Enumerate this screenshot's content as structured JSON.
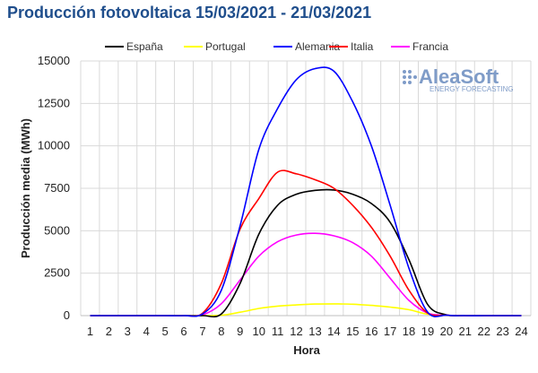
{
  "chart_data": {
    "type": "line",
    "title": "Producción fotovoltaica 15/03/2021 - 21/03/2021",
    "xlabel": "Hora",
    "ylabel": "Producción media (MWh)",
    "ylim": [
      0,
      15000
    ],
    "yticks": [
      "0",
      "2500",
      "5000",
      "7500",
      "10000",
      "12500",
      "15000"
    ],
    "x": [
      1,
      2,
      3,
      4,
      5,
      6,
      7,
      8,
      9,
      10,
      11,
      12,
      13,
      14,
      15,
      16,
      17,
      18,
      19,
      20,
      21,
      22,
      23,
      24
    ],
    "grid": true,
    "legend_position": "top",
    "series": [
      {
        "name": "España",
        "color": "#000000",
        "values": [
          0,
          0,
          0,
          0,
          0,
          0,
          0,
          100,
          1900,
          4800,
          6500,
          7150,
          7380,
          7400,
          7150,
          6600,
          5500,
          3300,
          650,
          50,
          0,
          0,
          0,
          0
        ]
      },
      {
        "name": "Portugal",
        "color": "#ffff00",
        "values": [
          0,
          0,
          0,
          0,
          0,
          0,
          0,
          20,
          200,
          420,
          560,
          630,
          680,
          690,
          670,
          600,
          500,
          350,
          80,
          10,
          0,
          0,
          0,
          0
        ]
      },
      {
        "name": "Alemania",
        "color": "#0000ff",
        "values": [
          0,
          0,
          0,
          0,
          0,
          0,
          100,
          1500,
          5300,
          9800,
          12200,
          13900,
          14550,
          14400,
          12600,
          10000,
          6500,
          2800,
          200,
          20,
          0,
          0,
          0,
          0
        ]
      },
      {
        "name": "Italia",
        "color": "#ff0000",
        "values": [
          0,
          0,
          0,
          0,
          0,
          0,
          150,
          1900,
          5100,
          6900,
          8450,
          8350,
          8000,
          7500,
          6500,
          5200,
          3500,
          1500,
          150,
          20,
          0,
          0,
          0,
          0
        ]
      },
      {
        "name": "Francia",
        "color": "#ff00ff",
        "values": [
          0,
          0,
          0,
          0,
          0,
          0,
          50,
          700,
          2100,
          3500,
          4350,
          4750,
          4850,
          4700,
          4300,
          3500,
          2200,
          900,
          150,
          20,
          0,
          0,
          0,
          0
        ]
      }
    ]
  },
  "watermark": {
    "brand": "AleaSoft",
    "tagline": "ENERGY FORECASTING"
  }
}
